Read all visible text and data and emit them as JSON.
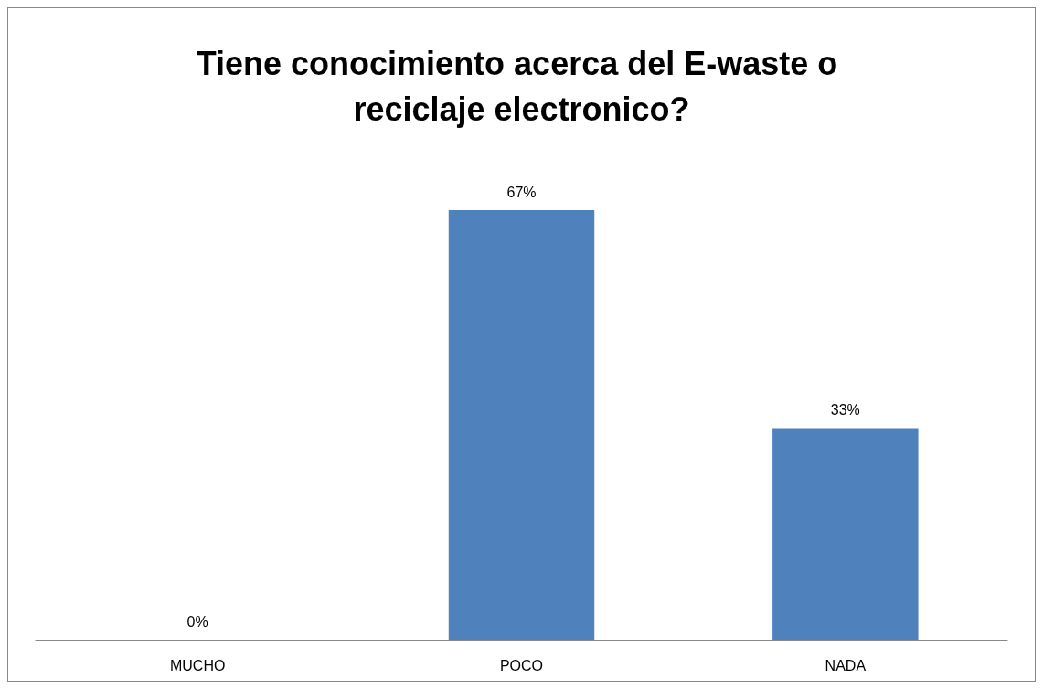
{
  "chart_data": {
    "type": "bar",
    "title": "Tiene conocimiento acerca del E-waste o reciclaje electronico?",
    "categories": [
      "MUCHO",
      "POCO",
      "NADA"
    ],
    "values": [
      0,
      67,
      33
    ],
    "value_labels": [
      "0%",
      "67%",
      "33%"
    ],
    "color": "#4f81bd"
  }
}
